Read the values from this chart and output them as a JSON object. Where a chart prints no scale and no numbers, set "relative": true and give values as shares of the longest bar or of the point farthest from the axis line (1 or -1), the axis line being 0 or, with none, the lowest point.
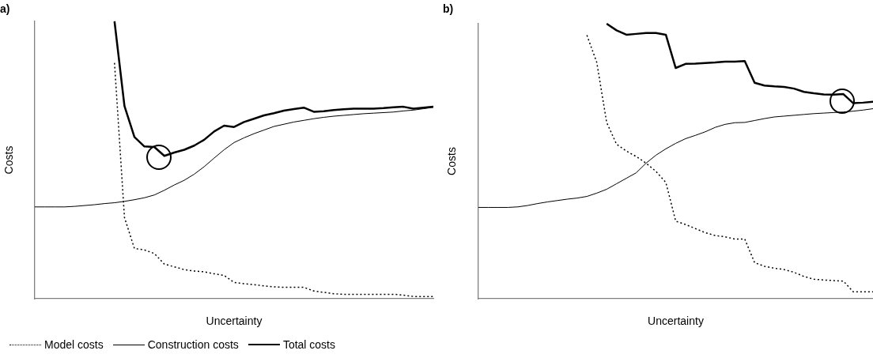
{
  "chart_data": [
    {
      "type": "line",
      "title": "a)",
      "xlabel": "Uncertainty",
      "ylabel": "Costs",
      "relative": true,
      "grid": false,
      "tick_labels": false,
      "legend": "bottom left",
      "marker": "none",
      "categories": [
        null,
        null,
        null,
        null,
        null,
        null,
        null,
        null,
        null,
        null,
        null,
        null,
        null,
        null,
        null,
        null,
        null,
        null,
        null,
        null,
        null,
        null,
        null,
        null,
        null,
        null,
        null,
        null,
        null,
        null,
        null,
        null,
        null,
        null,
        null,
        null,
        null,
        null,
        null,
        null,
        null
      ],
      "series": [
        {
          "name": "Model costs",
          "color": "#000000",
          "line_style": "dotted",
          "values": [
            null,
            null,
            null,
            null,
            null,
            null,
            null,
            null,
            0.85,
            0.293,
            0.181,
            0.176,
            0.163,
            0.125,
            0.115,
            0.105,
            0.1,
            0.097,
            0.09,
            0.084,
            0.059,
            0.054,
            0.051,
            0.046,
            0.043,
            0.041,
            0.041,
            0.041,
            0.028,
            0.023,
            0.018,
            0.016,
            0.016,
            0.016,
            0.016,
            0.016,
            0.016,
            0.013,
            0.008,
            0.008,
            0.008
          ]
        },
        {
          "name": "Construction costs",
          "color": "#000000",
          "line_style": "solid",
          "values": [
            0.331,
            0.331,
            0.331,
            0.331,
            0.333,
            0.336,
            0.339,
            0.343,
            0.346,
            0.351,
            0.357,
            0.364,
            0.374,
            0.391,
            0.41,
            0.427,
            0.449,
            0.476,
            0.507,
            0.537,
            0.563,
            0.58,
            0.595,
            0.608,
            0.621,
            0.629,
            0.637,
            0.643,
            0.649,
            0.654,
            0.658,
            0.661,
            0.664,
            0.667,
            0.669,
            0.671,
            0.673,
            0.677,
            0.68,
            0.685,
            0.69
          ]
        },
        {
          "name": "Total costs",
          "color": "#000000",
          "line_style": "solid",
          "values": [
            null,
            null,
            null,
            null,
            null,
            null,
            null,
            null,
            1.0,
            0.695,
            0.583,
            0.549,
            0.547,
            0.515,
            0.527,
            0.537,
            0.552,
            0.573,
            0.603,
            0.624,
            0.619,
            0.637,
            0.649,
            0.661,
            0.669,
            0.678,
            0.684,
            0.689,
            0.674,
            0.676,
            0.68,
            0.683,
            0.685,
            0.685,
            0.685,
            0.687,
            0.69,
            0.692,
            0.685,
            0.689,
            0.692
          ]
        }
      ]
    },
    {
      "type": "line",
      "title": "b)",
      "xlabel": "Uncertainty",
      "ylabel": "Costs",
      "relative": true,
      "grid": false,
      "tick_labels": false,
      "marker": "none",
      "categories": [
        null,
        null,
        null,
        null,
        null,
        null,
        null,
        null,
        null,
        null,
        null,
        null,
        null,
        null,
        null,
        null,
        null,
        null,
        null,
        null,
        null,
        null,
        null,
        null,
        null,
        null,
        null,
        null,
        null,
        null,
        null,
        null,
        null,
        null,
        null,
        null,
        null,
        null,
        null,
        null,
        null
      ],
      "series": [
        {
          "color": "#000000",
          "line_style": "dotted",
          "values": [
            null,
            null,
            null,
            null,
            null,
            null,
            null,
            null,
            null,
            null,
            null,
            0.958,
            0.859,
            0.641,
            0.562,
            0.537,
            0.517,
            0.493,
            0.463,
            0.423,
            0.282,
            0.27,
            0.255,
            0.24,
            0.23,
            0.225,
            0.217,
            0.217,
            0.131,
            0.118,
            0.111,
            0.106,
            0.096,
            0.081,
            0.071,
            0.068,
            0.066,
            0.064,
            0.025,
            0.025,
            0.025
          ]
        },
        {
          "color": "#000000",
          "line_style": "solid",
          "values": [
            0.332,
            0.332,
            0.332,
            0.332,
            0.334,
            0.339,
            0.346,
            0.352,
            0.357,
            0.362,
            0.366,
            0.372,
            0.384,
            0.398,
            0.418,
            0.438,
            0.458,
            0.493,
            0.522,
            0.545,
            0.565,
            0.582,
            0.594,
            0.607,
            0.623,
            0.634,
            0.64,
            0.641,
            0.648,
            0.655,
            0.661,
            0.664,
            0.667,
            0.67,
            0.673,
            0.675,
            0.677,
            0.679,
            0.682,
            0.686,
            0.691
          ]
        },
        {
          "color": "#000000",
          "line_style": "solid",
          "values": [
            null,
            null,
            null,
            null,
            null,
            null,
            null,
            null,
            null,
            null,
            null,
            null,
            null,
            1.0,
            0.976,
            0.96,
            0.963,
            0.966,
            0.966,
            0.96,
            0.839,
            0.854,
            0.855,
            0.857,
            0.859,
            0.862,
            0.862,
            0.864,
            0.785,
            0.775,
            0.772,
            0.77,
            0.764,
            0.752,
            0.747,
            0.743,
            0.742,
            0.744,
            0.711,
            0.713,
            0.716
          ]
        }
      ]
    }
  ]
}
